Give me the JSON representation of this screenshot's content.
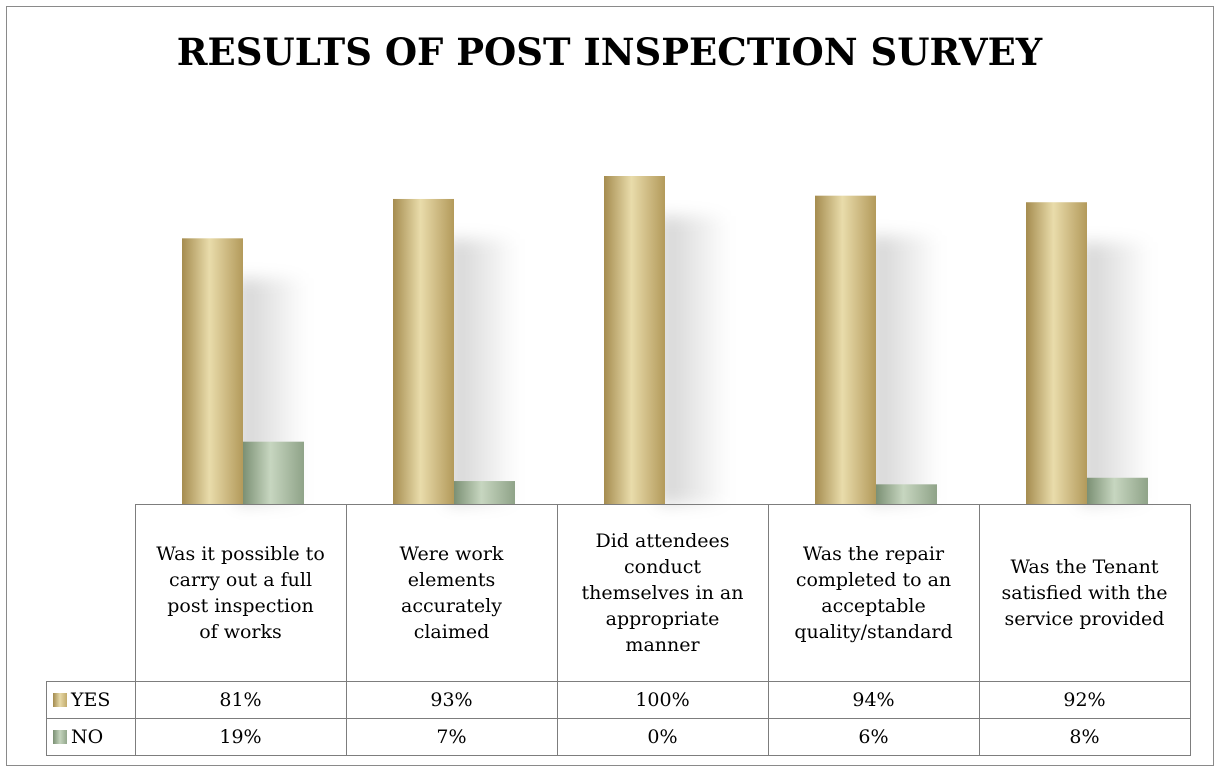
{
  "chart_data": {
    "type": "bar",
    "title": "RESULTS OF POST INSPECTION SURVEY",
    "categories": [
      "Was it possible to carry out a full post inspection of works",
      "Were work elements accurately claimed",
      "Did attendees conduct themselves in an appropriate manner",
      "Was the repair completed to an acceptable quality/standard",
      "Was the Tenant satisfied with the service provided"
    ],
    "category_lines": [
      [
        "Was it possible to",
        "carry out a full",
        "post inspection",
        "of works"
      ],
      [
        "Were work",
        "elements",
        "accurately",
        "claimed"
      ],
      [
        "Did attendees",
        "conduct",
        "themselves in an",
        "appropriate",
        "manner"
      ],
      [
        "Was the repair",
        "completed to an",
        "acceptable",
        "quality/standard"
      ],
      [
        "Was the Tenant",
        "satisfied with the",
        "service provided"
      ]
    ],
    "series": [
      {
        "name": "YES",
        "values": [
          81,
          93,
          100,
          94,
          92
        ],
        "labels": [
          "81%",
          "93%",
          "100%",
          "94%",
          "92%"
        ],
        "color": "#c9b377"
      },
      {
        "name": "NO",
        "values": [
          19,
          7,
          0,
          6,
          8
        ],
        "labels": [
          "19%",
          "7%",
          "0%",
          "6%",
          "8%"
        ],
        "color": "#a9bba2"
      }
    ],
    "ylim": [
      0,
      100
    ],
    "grid": false,
    "legend": "data-table"
  }
}
